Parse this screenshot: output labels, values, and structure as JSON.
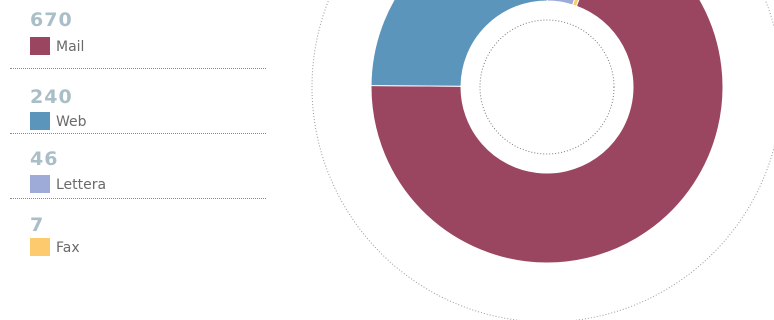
{
  "colors": {
    "Mail": "#9b4660",
    "Web": "#5b95bb",
    "Lettera": "#9eabd8",
    "Fax": "#fdcb6e",
    "value_text": "#a9bec7"
  },
  "chart_data": {
    "type": "pie",
    "title": "",
    "categories": [
      "Mail",
      "Web",
      "Lettera",
      "Fax"
    ],
    "values": [
      670,
      240,
      46,
      7
    ],
    "donut": true,
    "legend": "left"
  },
  "legend": {
    "items": [
      {
        "value": "670",
        "label": "Mail"
      },
      {
        "value": "240",
        "label": "Web"
      },
      {
        "value": "46",
        "label": "Lettera"
      },
      {
        "value": "7",
        "label": "Fax"
      }
    ]
  }
}
